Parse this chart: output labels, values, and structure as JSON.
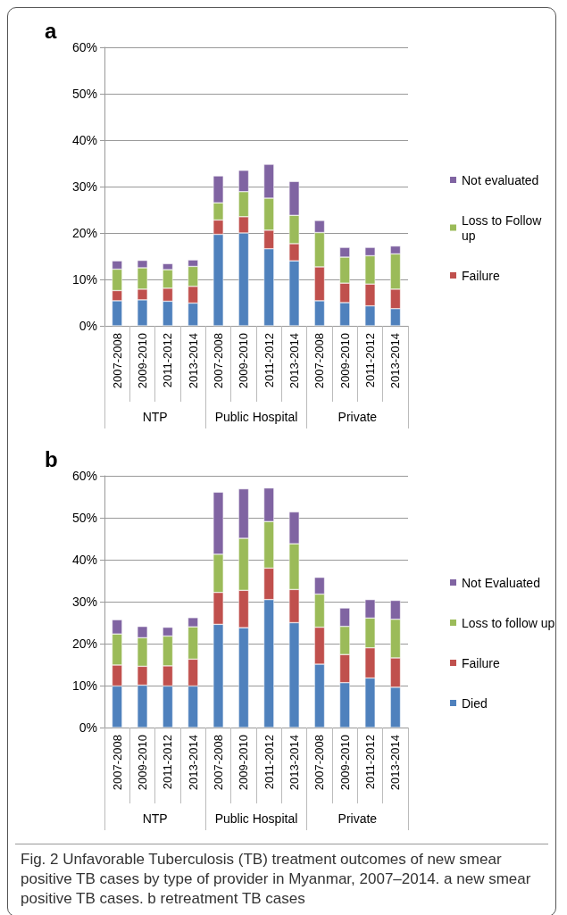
{
  "chart_data": [
    {
      "type": "bar",
      "title": "a",
      "stacked": true,
      "categories": [
        "2007-2008",
        "2009-2010",
        "2011-2012",
        "2013-2014",
        "2007-2008",
        "2009-2010",
        "2011-2012",
        "2013-2014",
        "2007-2008",
        "2009-2010",
        "2011-2012",
        "2013-2014"
      ],
      "annotations": [
        "NTP",
        "Public Hospital",
        "Private"
      ],
      "series": [
        {
          "color": "#4f81bd",
          "values": [
            5.4,
            5.6,
            5.3,
            4.9,
            19.7,
            20.0,
            16.6,
            14.0,
            5.4,
            5.0,
            4.3,
            3.7
          ]
        },
        {
          "name": "Failure",
          "color": "#c0504d",
          "values": [
            2.2,
            2.3,
            2.8,
            3.6,
            3.1,
            3.5,
            4.0,
            3.7,
            7.3,
            4.2,
            4.7,
            4.2
          ]
        },
        {
          "name": "Loss to Follow up",
          "color": "#9bbb59",
          "values": [
            4.6,
            4.6,
            4.0,
            4.3,
            3.7,
            5.4,
            6.9,
            6.1,
            7.4,
            5.6,
            6.1,
            7.6
          ]
        },
        {
          "name": "Not evaluated",
          "color": "#8064a2",
          "values": [
            1.8,
            1.6,
            1.3,
            1.4,
            5.8,
            4.6,
            7.3,
            7.3,
            2.6,
            2.1,
            1.8,
            1.7
          ]
        }
      ],
      "ylim": [
        0,
        60
      ],
      "yticks": [
        {
          "value": 0,
          "label": "0%"
        },
        {
          "value": 10,
          "label": "10%"
        },
        {
          "value": 20,
          "label": "20%"
        },
        {
          "value": 30,
          "label": "30%"
        },
        {
          "value": 40,
          "label": "40%"
        },
        {
          "value": 50,
          "label": "50%"
        },
        {
          "value": 60,
          "label": "60%"
        }
      ],
      "grid": "y",
      "legend": "right"
    },
    {
      "type": "bar",
      "title": "b",
      "stacked": true,
      "categories": [
        "2007-2008",
        "2009-2010",
        "2011-2012",
        "2013-2014",
        "2007-2008",
        "2009-2010",
        "2011-2012",
        "2013-2014",
        "2007-2008",
        "2009-2010",
        "2011-2012",
        "2013-2014"
      ],
      "annotations": [
        "NTP",
        "Public Hospital",
        "Private",
        "Fig. 2 Unfavorable Tuberculosis (TB) treatment outcomes of new smear positive TB cases by type of provider in Myanmar, 2007–2014. a new smear positive TB cases. b retreatment TB cases"
      ],
      "series": [
        {
          "name": "Died",
          "color": "#4f81bd",
          "values": [
            9.9,
            10.1,
            9.9,
            9.9,
            24.6,
            23.8,
            30.5,
            25.0,
            15.1,
            10.7,
            11.8,
            9.6
          ]
        },
        {
          "name": "Failure",
          "color": "#c0504d",
          "values": [
            5.0,
            4.5,
            4.8,
            6.4,
            7.6,
            8.9,
            7.5,
            7.9,
            8.8,
            6.7,
            7.2,
            7.0
          ]
        },
        {
          "name": "Loss to follow up",
          "color": "#9bbb59",
          "values": [
            7.4,
            6.8,
            7.1,
            7.7,
            9.1,
            12.4,
            11.1,
            10.9,
            7.9,
            6.7,
            7.1,
            9.2
          ]
        },
        {
          "name": "Not Evaluated",
          "color": "#8064a2",
          "values": [
            3.4,
            2.7,
            2.1,
            2.2,
            14.8,
            11.8,
            8.0,
            7.6,
            4.0,
            4.4,
            4.4,
            4.5
          ]
        }
      ],
      "ylim": [
        0,
        60
      ],
      "yticks": [
        {
          "value": 0,
          "label": "0%"
        },
        {
          "value": 10,
          "label": "10%"
        },
        {
          "value": 20,
          "label": "20%"
        },
        {
          "value": 30,
          "label": "30%"
        },
        {
          "value": 40,
          "label": "40%"
        },
        {
          "value": 50,
          "label": "50%"
        },
        {
          "value": 60,
          "label": "60%"
        }
      ],
      "grid": "y",
      "legend": "right"
    }
  ]
}
